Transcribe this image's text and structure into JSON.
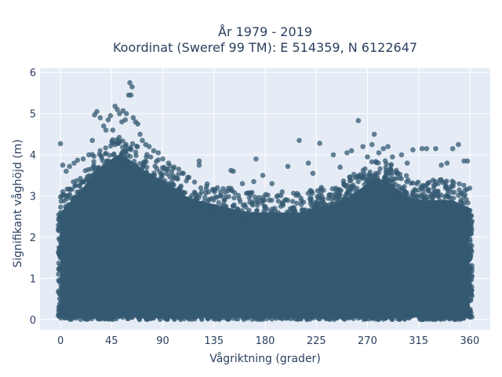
{
  "chart_data": {
    "type": "scatter",
    "title_line1": "År 1979 - 2019",
    "title_line2": "Koordinat (Sweref 99 TM): E 514359, N 6122647",
    "xlabel": "Vågriktning (grader)",
    "ylabel": "Signifikant våghöjd (m)",
    "xlim": [
      -18,
      378
    ],
    "ylim": [
      -0.25,
      6.1
    ],
    "xticks": [
      0,
      45,
      90,
      135,
      180,
      225,
      270,
      315,
      360
    ],
    "yticks": [
      0,
      1,
      2,
      3,
      4,
      5,
      6
    ],
    "grid": true,
    "legend": "none",
    "marker_color": "#345a72",
    "plot_bg": "#e5ecf6",
    "dense_band": {
      "x_range": [
        0,
        360
      ],
      "y_min": 0.05,
      "upper_envelope": [
        [
          0,
          2.6
        ],
        [
          10,
          2.9
        ],
        [
          20,
          3.2
        ],
        [
          30,
          3.6
        ],
        [
          40,
          3.8
        ],
        [
          50,
          4.0
        ],
        [
          60,
          3.9
        ],
        [
          70,
          3.7
        ],
        [
          80,
          3.5
        ],
        [
          90,
          3.4
        ],
        [
          100,
          3.2
        ],
        [
          110,
          3.0
        ],
        [
          120,
          2.9
        ],
        [
          135,
          2.8
        ],
        [
          150,
          2.7
        ],
        [
          165,
          2.6
        ],
        [
          180,
          2.6
        ],
        [
          195,
          2.6
        ],
        [
          210,
          2.6
        ],
        [
          225,
          2.7
        ],
        [
          240,
          2.8
        ],
        [
          255,
          3.0
        ],
        [
          265,
          3.2
        ],
        [
          275,
          3.4
        ],
        [
          285,
          3.4
        ],
        [
          295,
          3.2
        ],
        [
          305,
          3.0
        ],
        [
          315,
          2.9
        ],
        [
          330,
          2.9
        ],
        [
          345,
          2.9
        ],
        [
          360,
          2.7
        ]
      ]
    },
    "outlier_points": [
      [
        0,
        4.27
      ],
      [
        2,
        3.75
      ],
      [
        5,
        3.6
      ],
      [
        8,
        3.72
      ],
      [
        12,
        3.8
      ],
      [
        15,
        3.87
      ],
      [
        20,
        3.9
      ],
      [
        25,
        4.0
      ],
      [
        28,
        4.35
      ],
      [
        30,
        4.97
      ],
      [
        32,
        5.05
      ],
      [
        35,
        4.9
      ],
      [
        38,
        4.7
      ],
      [
        40,
        4.6
      ],
      [
        42,
        4.85
      ],
      [
        44,
        4.95
      ],
      [
        46,
        4.6
      ],
      [
        48,
        5.18
      ],
      [
        50,
        5.1
      ],
      [
        52,
        5.0
      ],
      [
        54,
        4.8
      ],
      [
        55,
        5.07
      ],
      [
        57,
        4.85
      ],
      [
        58,
        5.0
      ],
      [
        60,
        5.45
      ],
      [
        61,
        5.75
      ],
      [
        62,
        5.45
      ],
      [
        63,
        5.65
      ],
      [
        64,
        4.9
      ],
      [
        66,
        4.8
      ],
      [
        68,
        4.75
      ],
      [
        70,
        4.5
      ],
      [
        72,
        4.35
      ],
      [
        75,
        4.25
      ],
      [
        78,
        4.2
      ],
      [
        82,
        4.1
      ],
      [
        86,
        4.05
      ],
      [
        90,
        3.9
      ],
      [
        95,
        3.8
      ],
      [
        100,
        3.7
      ],
      [
        104,
        3.65
      ],
      [
        108,
        3.55
      ],
      [
        112,
        3.45
      ],
      [
        122,
        3.85
      ],
      [
        122,
        3.75
      ],
      [
        138,
        3.2
      ],
      [
        150,
        3.62
      ],
      [
        152,
        3.6
      ],
      [
        160,
        3.3
      ],
      [
        170,
        3.35
      ],
      [
        172,
        3.9
      ],
      [
        178,
        3.5
      ],
      [
        186,
        3.3
      ],
      [
        195,
        3.1
      ],
      [
        200,
        3.72
      ],
      [
        210,
        4.35
      ],
      [
        218,
        3.8
      ],
      [
        222,
        3.55
      ],
      [
        228,
        4.28
      ],
      [
        240,
        4.0
      ],
      [
        246,
        3.7
      ],
      [
        252,
        4.05
      ],
      [
        256,
        4.1
      ],
      [
        262,
        4.83
      ],
      [
        266,
        4.2
      ],
      [
        270,
        3.95
      ],
      [
        274,
        4.25
      ],
      [
        276,
        4.5
      ],
      [
        280,
        4.05
      ],
      [
        284,
        4.15
      ],
      [
        288,
        4.2
      ],
      [
        292,
        3.95
      ],
      [
        300,
        4.0
      ],
      [
        305,
        3.8
      ],
      [
        310,
        4.12
      ],
      [
        318,
        4.15
      ],
      [
        322,
        4.15
      ],
      [
        330,
        4.15
      ],
      [
        335,
        3.75
      ],
      [
        340,
        3.8
      ],
      [
        345,
        4.15
      ],
      [
        350,
        4.25
      ],
      [
        355,
        3.85
      ],
      [
        358,
        3.85
      ]
    ]
  }
}
